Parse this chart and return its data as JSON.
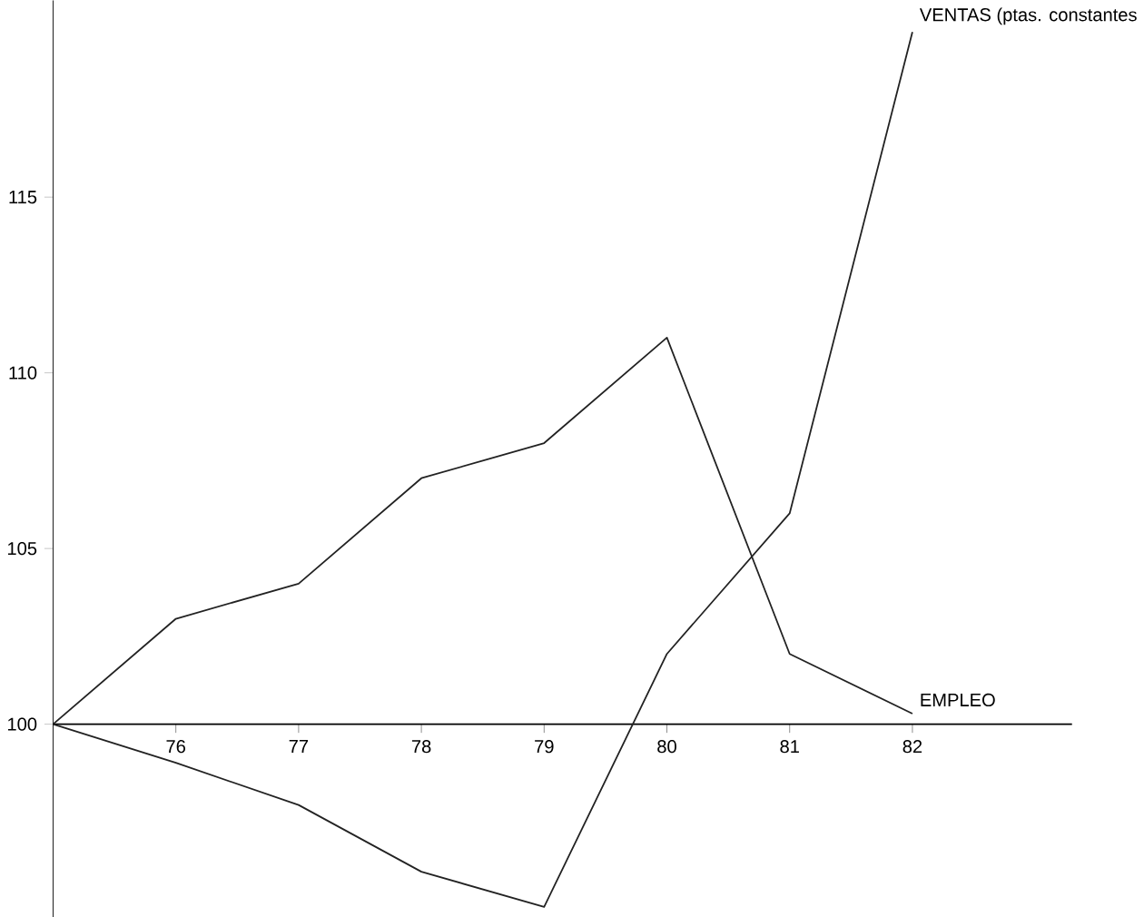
{
  "chart_data": {
    "type": "line",
    "x": [
      75,
      76,
      77,
      78,
      79,
      80,
      81,
      82
    ],
    "series": [
      {
        "name": "VENTAS (ptas. constantes",
        "color": "#222222",
        "values": [
          100,
          98.9,
          97.7,
          95.8,
          94.8,
          102,
          106,
          119.7
        ]
      },
      {
        "name": "EMPLEO",
        "color": "#222222",
        "values": [
          100,
          103,
          104,
          107,
          108,
          111,
          102,
          100.3
        ]
      }
    ],
    "xlim": [
      75,
      83.3
    ],
    "ylim": [
      94.5,
      120.6
    ],
    "xticks": [
      76,
      77,
      78,
      79,
      80,
      81,
      82
    ],
    "yticks": [
      100,
      105,
      110,
      115
    ],
    "grid": false,
    "marker": "none",
    "line_style": "solid"
  }
}
